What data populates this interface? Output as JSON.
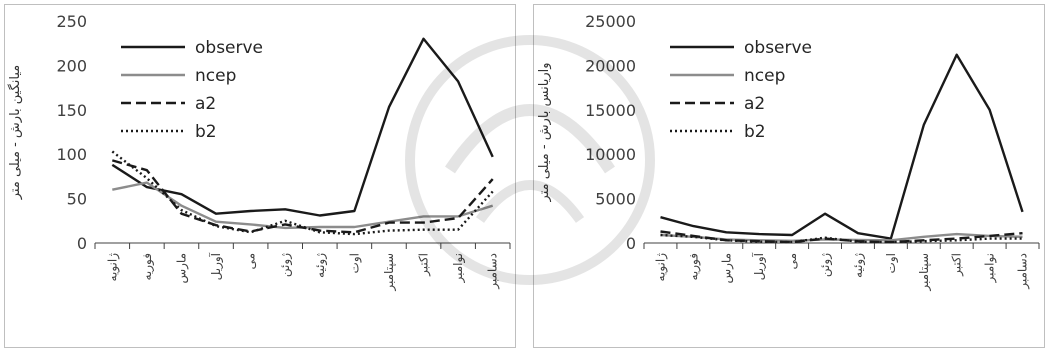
{
  "chart_data": [
    {
      "type": "line",
      "ylabel": "میانگین بارش - میلی متر",
      "xlabel": "",
      "ylim": [
        0,
        250
      ],
      "yticks": [
        0,
        50,
        100,
        150,
        200,
        250
      ],
      "categories": [
        "ژانویه",
        "فوریه",
        "مارس",
        "آوریل",
        "می",
        "ژوئن",
        "ژوئیه",
        "اوت",
        "سپتامبر",
        "اکتبر",
        "نوامبر",
        "دسامبر"
      ],
      "legend_position": "top-left",
      "series": [
        {
          "name": "observe",
          "color": "#1a1a1a",
          "dash": "solid",
          "values": [
            88,
            63,
            55,
            33,
            36,
            38,
            31,
            36,
            153,
            230,
            182,
            97
          ]
        },
        {
          "name": "ncep",
          "color": "#8c8c8c",
          "dash": "solid",
          "values": [
            60,
            68,
            42,
            24,
            21,
            17,
            18,
            18,
            24,
            30,
            30,
            42
          ]
        },
        {
          "name": "a2",
          "color": "#1a1a1a",
          "dash": "dashed",
          "values": [
            93,
            82,
            33,
            20,
            13,
            21,
            14,
            12,
            23,
            23,
            28,
            72
          ]
        },
        {
          "name": "b2",
          "color": "#1a1a1a",
          "dash": "dotted",
          "values": [
            103,
            73,
            37,
            19,
            12,
            25,
            12,
            10,
            14,
            15,
            15,
            58
          ]
        }
      ]
    },
    {
      "type": "line",
      "ylabel": "واریانس بارش - میلی متر",
      "xlabel": "",
      "ylim": [
        0,
        25000
      ],
      "yticks": [
        0,
        5000,
        10000,
        15000,
        20000,
        25000
      ],
      "categories": [
        "ژانویه",
        "فوریه",
        "مارس",
        "آوریل",
        "می",
        "ژوئن",
        "ژوئیه",
        "اوت",
        "سپتامبر",
        "اکتبر",
        "نوامبر",
        "دسامبر"
      ],
      "legend_position": "top-left",
      "series": [
        {
          "name": "observe",
          "color": "#1a1a1a",
          "dash": "solid",
          "values": [
            2900,
            1900,
            1200,
            1000,
            900,
            3300,
            1100,
            500,
            13300,
            21200,
            15000,
            3500
          ]
        },
        {
          "name": "ncep",
          "color": "#8c8c8c",
          "dash": "solid",
          "values": [
            900,
            700,
            400,
            300,
            250,
            400,
            350,
            300,
            700,
            1000,
            800,
            700
          ]
        },
        {
          "name": "a2",
          "color": "#1a1a1a",
          "dash": "dashed",
          "values": [
            1300,
            800,
            300,
            200,
            100,
            500,
            200,
            100,
            300,
            500,
            800,
            1100
          ]
        },
        {
          "name": "b2",
          "color": "#1a1a1a",
          "dash": "dotted",
          "values": [
            900,
            700,
            300,
            150,
            100,
            600,
            150,
            100,
            200,
            300,
            500,
            500
          ]
        }
      ]
    }
  ]
}
